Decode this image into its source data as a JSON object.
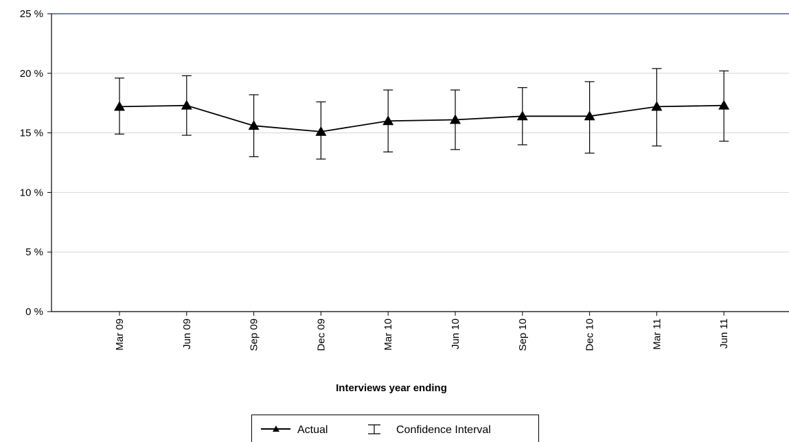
{
  "chart_data": {
    "type": "line",
    "xlabel": "Interviews year ending",
    "ylabel": "",
    "ylim": [
      0,
      25
    ],
    "y_ticks": [
      0,
      5,
      10,
      15,
      20,
      25
    ],
    "y_tick_labels": [
      "0 %",
      "5 %",
      "10 %",
      "15 %",
      "20 %",
      "25 %"
    ],
    "grid": "horizontal",
    "categories": [
      "Mar 09",
      "Jun 09",
      "Sep 09",
      "Dec 09",
      "Mar 10",
      "Jun 10",
      "Sep 10",
      "Dec 10",
      "Mar 11",
      "Jun 11"
    ],
    "series": [
      {
        "name": "Actual",
        "marker": "triangle",
        "color": "#000000",
        "values": [
          17.2,
          17.3,
          15.6,
          15.1,
          16.0,
          16.1,
          16.4,
          16.4,
          17.2,
          17.3
        ],
        "ci_lower": [
          14.9,
          14.8,
          13.0,
          12.8,
          13.4,
          13.6,
          14.0,
          13.3,
          13.9,
          14.3
        ],
        "ci_upper": [
          19.6,
          19.8,
          18.2,
          17.6,
          18.6,
          18.6,
          18.8,
          19.3,
          20.4,
          20.2
        ]
      }
    ],
    "legend": {
      "position": "bottom-center",
      "items": [
        "Actual",
        "Confidence Interval"
      ]
    }
  }
}
